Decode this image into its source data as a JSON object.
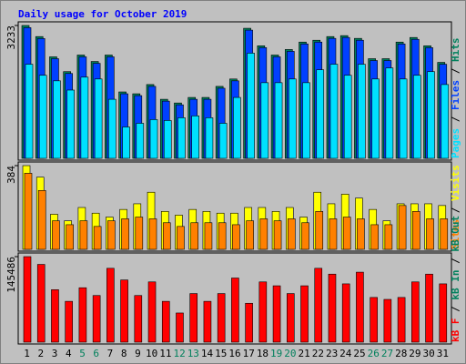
{
  "chart_data": [
    {
      "type": "bar",
      "title": "Daily usage for October 2019",
      "legend_separator": " / ",
      "ylim": [
        0,
        3233
      ],
      "yticks": [
        3233
      ],
      "series": [
        {
          "name": "Hits",
          "color": "#00805c",
          "values": [
            3233,
            2963,
            2470,
            2110,
            2514,
            2357,
            2514,
            1616,
            1571,
            1796,
            1437,
            1347,
            1482,
            1482,
            1751,
            1931,
            3165,
            2739,
            2514,
            2649,
            2829,
            2874,
            2963,
            2986,
            2919,
            2425,
            2425,
            2829,
            2941,
            2739,
            2335
          ]
        },
        {
          "name": "Files",
          "color": "#0040ff",
          "values": [
            3180,
            2915,
            2425,
            2065,
            2470,
            2312,
            2470,
            1571,
            1526,
            1751,
            1392,
            1302,
            1437,
            1437,
            1706,
            1886,
            3120,
            2694,
            2470,
            2604,
            2784,
            2829,
            2919,
            2941,
            2874,
            2380,
            2380,
            2784,
            2896,
            2694,
            2290
          ]
        },
        {
          "name": "Pages",
          "color": "#00e0ff",
          "values": [
            2290,
            2021,
            1886,
            1661,
            1976,
            1931,
            1437,
            763,
            853,
            943,
            920,
            988,
            1033,
            988,
            853,
            1482,
            2559,
            1841,
            1841,
            1931,
            1841,
            2155,
            2290,
            2021,
            2290,
            1931,
            2200,
            1931,
            2021,
            2110,
            1796
          ]
        }
      ]
    },
    {
      "type": "bar",
      "ylim": [
        0,
        384
      ],
      "yticks": [
        384
      ],
      "series": [
        {
          "name": "Visits",
          "color": "#ffff00",
          "values": [
            384,
            331,
            161,
            131,
            192,
            166,
            148,
            183,
            209,
            262,
            174,
            157,
            183,
            174,
            166,
            166,
            192,
            192,
            174,
            192,
            148,
            262,
            209,
            253,
            235,
            183,
            131,
            209,
            209,
            209,
            201
          ]
        },
        {
          "name": "Sites",
          "color": "#ff8000",
          "values": [
            349,
            270,
            131,
            113,
            131,
            105,
            131,
            140,
            148,
            140,
            122,
            105,
            122,
            122,
            122,
            113,
            131,
            140,
            131,
            140,
            122,
            174,
            140,
            148,
            140,
            113,
            113,
            201,
            174,
            140,
            140
          ]
        }
      ]
    },
    {
      "type": "bar",
      "ylim": [
        0,
        145486
      ],
      "yticks": [
        145486
      ],
      "categories": [
        "1",
        "2",
        "3",
        "4",
        "5",
        "6",
        "7",
        "8",
        "9",
        "10",
        "11",
        "12",
        "13",
        "14",
        "15",
        "16",
        "17",
        "18",
        "19",
        "20",
        "21",
        "22",
        "23",
        "24",
        "25",
        "26",
        "27",
        "28",
        "29",
        "30",
        "31"
      ],
      "category_colors": [
        "#000000",
        "#000000",
        "#000000",
        "#000000",
        "#00805c",
        "#00805c",
        "#000000",
        "#000000",
        "#000000",
        "#000000",
        "#000000",
        "#00805c",
        "#00805c",
        "#000000",
        "#000000",
        "#000000",
        "#000000",
        "#000000",
        "#00805c",
        "#00805c",
        "#000000",
        "#000000",
        "#000000",
        "#000000",
        "#000000",
        "#00805c",
        "#00805c",
        "#000000",
        "#000000",
        "#000000",
        "#000000"
      ],
      "series": [
        {
          "name": "kB F",
          "color": "#ff0000",
          "values": [
            145486,
            132240,
            89270,
            69430,
            92570,
            79340,
            125630,
            105790,
            79340,
            102480,
            69430,
            49590,
            82650,
            69430,
            82650,
            109100,
            66120,
            102480,
            95870,
            82650,
            95870,
            125630,
            115710,
            99170,
            119020,
            76040,
            72730,
            76040,
            102480,
            115710,
            99170
          ]
        }
      ],
      "legend_extra": [
        {
          "text": "kB In",
          "color": "#00805c"
        },
        {
          "text": "kB Out",
          "color": "#00805c"
        }
      ]
    }
  ]
}
